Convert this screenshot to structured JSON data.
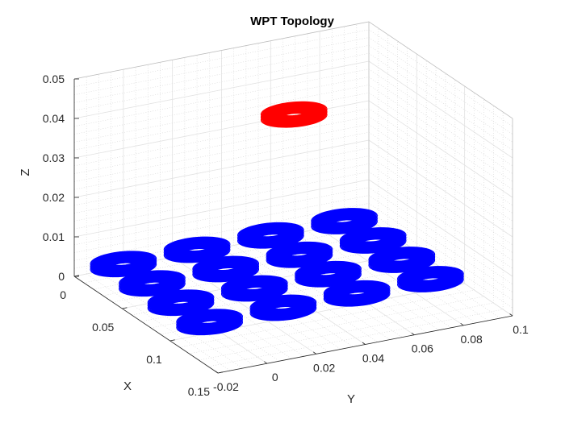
{
  "chart_data": {
    "type": "scatter3d",
    "title": "WPT Topology",
    "xlabel": "X",
    "ylabel": "Y",
    "zlabel": "Z",
    "xlim": [
      0,
      0.15
    ],
    "ylim": [
      -0.02,
      0.1
    ],
    "zlim": [
      0,
      0.05
    ],
    "x_ticks": [
      "0",
      "0.05",
      "0.1",
      "0.15"
    ],
    "y_ticks": [
      "-0.02",
      "0",
      "0.02",
      "0.04",
      "0.06",
      "0.08",
      "0.1"
    ],
    "z_ticks": [
      "0",
      "0.01",
      "0.02",
      "0.03",
      "0.04",
      "0.05"
    ],
    "grid": true,
    "series": [
      {
        "role": "receiver",
        "color": "#ff0000",
        "coils": [
          {
            "x": 0.05,
            "y": 0.05,
            "z": 0.04
          }
        ]
      },
      {
        "role": "transmitter-array",
        "color": "#0000ff",
        "coils": [
          {
            "x": 0.0,
            "y": 0.0,
            "z": 0
          },
          {
            "x": 0.0,
            "y": 0.03,
            "z": 0
          },
          {
            "x": 0.0,
            "y": 0.06,
            "z": 0
          },
          {
            "x": 0.0,
            "y": 0.09,
            "z": 0
          },
          {
            "x": 0.03,
            "y": 0.0,
            "z": 0
          },
          {
            "x": 0.03,
            "y": 0.03,
            "z": 0
          },
          {
            "x": 0.03,
            "y": 0.06,
            "z": 0
          },
          {
            "x": 0.03,
            "y": 0.09,
            "z": 0
          },
          {
            "x": 0.06,
            "y": 0.0,
            "z": 0
          },
          {
            "x": 0.06,
            "y": 0.03,
            "z": 0
          },
          {
            "x": 0.06,
            "y": 0.06,
            "z": 0
          },
          {
            "x": 0.06,
            "y": 0.09,
            "z": 0
          },
          {
            "x": 0.09,
            "y": 0.0,
            "z": 0
          },
          {
            "x": 0.09,
            "y": 0.03,
            "z": 0
          },
          {
            "x": 0.09,
            "y": 0.06,
            "z": 0
          },
          {
            "x": 0.09,
            "y": 0.09,
            "z": 0
          }
        ]
      }
    ]
  }
}
